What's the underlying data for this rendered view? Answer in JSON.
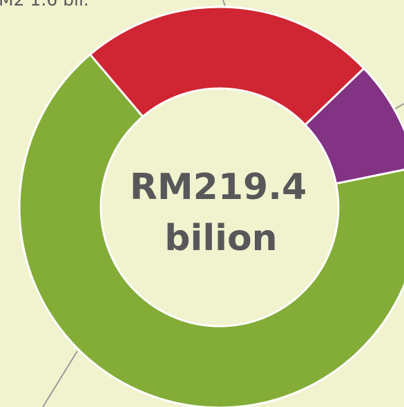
{
  "chart_data": {
    "type": "pie",
    "annotation": "M2 1.6 bil.",
    "center_text": [
      "RM219.4",
      "bilion"
    ],
    "values": [
      24,
      9,
      67
    ],
    "colors": [
      "#d02532",
      "#833383",
      "#84ad38"
    ]
  }
}
